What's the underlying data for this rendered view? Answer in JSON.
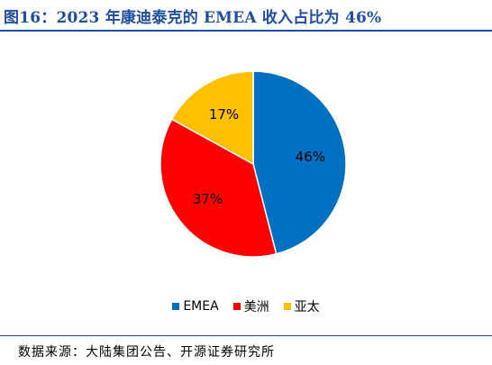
{
  "figure": {
    "title": "图16：2023 年康迪泰克的 EMEA 收入占比为 46%",
    "source": "数据来源：大陆集团公告、开源证券研究所"
  },
  "chart_data": {
    "type": "pie",
    "title": "",
    "slices": [
      {
        "label": "EMEA",
        "value": 46,
        "display": "46%",
        "color": "#0070c0"
      },
      {
        "label": "美洲",
        "value": 37,
        "display": "37%",
        "color": "#ff0000"
      },
      {
        "label": "亚太",
        "value": 17,
        "display": "17%",
        "color": "#ffc000"
      }
    ],
    "start": "12 o'clock",
    "direction": "clockwise",
    "legend_position": "bottom"
  }
}
